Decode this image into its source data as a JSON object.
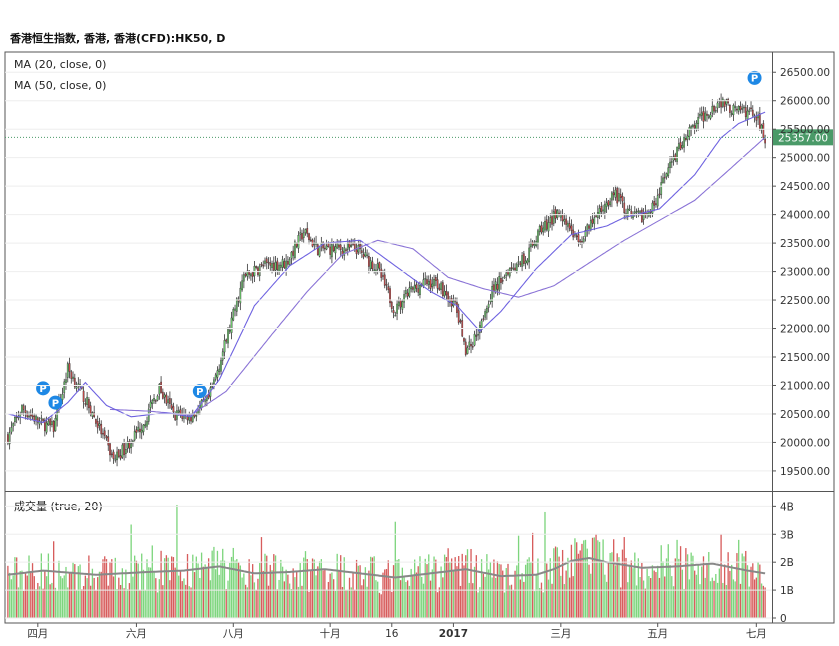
{
  "title": "香港恒生指数, 香港, 香港(CFD):HK50, D",
  "legend": {
    "ma20": "MA (20, close, 0)",
    "ma50": "MA (50, close, 0)",
    "volume": "成交量 (true, 20)"
  },
  "colors": {
    "up": "#6fd06f",
    "down": "#d34a4a",
    "ma20": "#6e62e0",
    "ma50": "#8a73d6",
    "vol_ma": "#888888",
    "last_price_bg": "#4a9a68",
    "marker": "#1e88e5"
  },
  "chart_data": {
    "type": "candlestick",
    "title": "香港恒生指数, 香港, 香港(CFD):HK50, D",
    "price_axis": {
      "range": [
        19200,
        26750
      ],
      "ticks": [
        "19500.00",
        "20000.00",
        "20500.00",
        "21000.00",
        "21500.00",
        "22000.00",
        "22500.00",
        "23000.00",
        "23500.00",
        "24000.00",
        "24500.00",
        "25000.00",
        "25500.00",
        "26000.00",
        "26500.00"
      ],
      "tick_values": [
        19500,
        20000,
        20500,
        21000,
        21500,
        22000,
        22500,
        23000,
        23500,
        24000,
        24500,
        25000,
        25500,
        26000,
        26500
      ]
    },
    "last_price": 25357,
    "last_price_label": "25357.00",
    "volume_axis": {
      "range": [
        0,
        4.3
      ],
      "ticks": [
        "0",
        "1B",
        "2B",
        "3B",
        "4B"
      ],
      "tick_values": [
        0,
        1,
        2,
        3,
        4
      ]
    },
    "time_axis": {
      "labels": [
        "四月",
        "六月",
        "八月",
        "十月",
        "16",
        "2017",
        "三月",
        "五月",
        "七月"
      ],
      "bold": [
        "2017"
      ],
      "label_bar_index": [
        17,
        73,
        128,
        183,
        218,
        253,
        314,
        369,
        425
      ]
    },
    "bar_count": 431,
    "price_anchors": [
      [
        0,
        20100
      ],
      [
        8,
        20600
      ],
      [
        18,
        20350
      ],
      [
        26,
        20250
      ],
      [
        34,
        21300
      ],
      [
        44,
        20750
      ],
      [
        52,
        20250
      ],
      [
        60,
        19700
      ],
      [
        68,
        19950
      ],
      [
        78,
        20400
      ],
      [
        86,
        20950
      ],
      [
        94,
        20500
      ],
      [
        104,
        20450
      ],
      [
        114,
        20750
      ],
      [
        124,
        21800
      ],
      [
        134,
        22900
      ],
      [
        145,
        23100
      ],
      [
        158,
        23150
      ],
      [
        168,
        23700
      ],
      [
        176,
        23400
      ],
      [
        188,
        23400
      ],
      [
        198,
        23400
      ],
      [
        210,
        23050
      ],
      [
        220,
        22300
      ],
      [
        228,
        22650
      ],
      [
        236,
        22800
      ],
      [
        244,
        22800
      ],
      [
        254,
        22400
      ],
      [
        260,
        21650
      ],
      [
        264,
        21750
      ],
      [
        274,
        22600
      ],
      [
        284,
        23050
      ],
      [
        294,
        23250
      ],
      [
        304,
        23800
      ],
      [
        314,
        24050
      ],
      [
        324,
        23500
      ],
      [
        334,
        23950
      ],
      [
        344,
        24400
      ],
      [
        354,
        23950
      ],
      [
        364,
        24000
      ],
      [
        374,
        24700
      ],
      [
        384,
        25350
      ],
      [
        394,
        25700
      ],
      [
        404,
        26000
      ],
      [
        414,
        25800
      ],
      [
        424,
        25800
      ],
      [
        430,
        25357
      ]
    ],
    "ma20_anchors": [
      [
        0,
        20500
      ],
      [
        20,
        20350
      ],
      [
        34,
        20700
      ],
      [
        44,
        21050
      ],
      [
        56,
        20650
      ],
      [
        70,
        20450
      ],
      [
        90,
        20520
      ],
      [
        104,
        20450
      ],
      [
        120,
        21100
      ],
      [
        140,
        22400
      ],
      [
        160,
        23100
      ],
      [
        180,
        23500
      ],
      [
        200,
        23550
      ],
      [
        220,
        23100
      ],
      [
        240,
        22650
      ],
      [
        255,
        22400
      ],
      [
        268,
        21950
      ],
      [
        280,
        22300
      ],
      [
        300,
        23050
      ],
      [
        320,
        23650
      ],
      [
        340,
        23800
      ],
      [
        350,
        23950
      ],
      [
        370,
        24100
      ],
      [
        390,
        24700
      ],
      [
        405,
        25350
      ],
      [
        415,
        25600
      ],
      [
        430,
        25800
      ]
    ],
    "ma50_anchors": [
      [
        58,
        20580
      ],
      [
        80,
        20550
      ],
      [
        104,
        20480
      ],
      [
        124,
        20900
      ],
      [
        150,
        21900
      ],
      [
        170,
        22650
      ],
      [
        190,
        23300
      ],
      [
        210,
        23550
      ],
      [
        230,
        23400
      ],
      [
        250,
        22900
      ],
      [
        270,
        22700
      ],
      [
        290,
        22550
      ],
      [
        310,
        22750
      ],
      [
        330,
        23150
      ],
      [
        350,
        23550
      ],
      [
        370,
        23900
      ],
      [
        390,
        24250
      ],
      [
        410,
        24800
      ],
      [
        430,
        25357
      ]
    ],
    "volume_ma_anchors": [
      [
        0,
        1.55
      ],
      [
        20,
        1.7
      ],
      [
        50,
        1.55
      ],
      [
        80,
        1.65
      ],
      [
        100,
        1.7
      ],
      [
        120,
        1.85
      ],
      [
        140,
        1.6
      ],
      [
        160,
        1.65
      ],
      [
        180,
        1.75
      ],
      [
        200,
        1.6
      ],
      [
        220,
        1.45
      ],
      [
        240,
        1.6
      ],
      [
        260,
        1.75
      ],
      [
        280,
        1.5
      ],
      [
        300,
        1.55
      ],
      [
        310,
        1.75
      ],
      [
        320,
        2.05
      ],
      [
        330,
        2.15
      ],
      [
        340,
        2.0
      ],
      [
        360,
        1.8
      ],
      [
        380,
        1.85
      ],
      [
        400,
        1.95
      ],
      [
        420,
        1.7
      ],
      [
        430,
        1.6
      ]
    ],
    "volume_spikes": [
      [
        26,
        2.75
      ],
      [
        70,
        3.35
      ],
      [
        82,
        2.6
      ],
      [
        96,
        4.05
      ],
      [
        144,
        2.9
      ],
      [
        220,
        3.45
      ],
      [
        250,
        2.5
      ],
      [
        260,
        2.25
      ],
      [
        290,
        2.95
      ],
      [
        298,
        3.05
      ],
      [
        305,
        3.8
      ],
      [
        310,
        2.5
      ],
      [
        350,
        2.9
      ],
      [
        380,
        2.8
      ],
      [
        405,
        3.0
      ],
      [
        415,
        2.8
      ]
    ],
    "dividend_markers": [
      {
        "label": "P",
        "bar": 20,
        "price": 20950
      },
      {
        "label": "P",
        "bar": 27,
        "price": 20700
      },
      {
        "label": "P",
        "bar": 109,
        "price": 20900
      },
      {
        "label": "P",
        "bar": 424,
        "price": 26400
      }
    ]
  }
}
